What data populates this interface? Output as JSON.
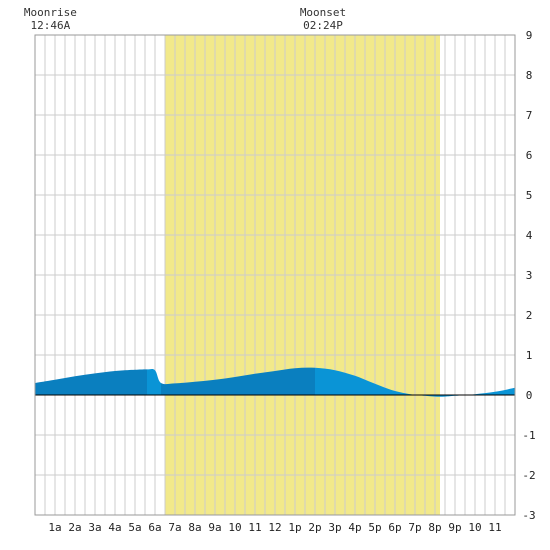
{
  "chart_data": {
    "type": "area",
    "title": "",
    "xlabel": "",
    "ylabel": "",
    "ylim": [
      -3,
      9
    ],
    "xlim": [
      0,
      24
    ],
    "grid": true,
    "yticks": [
      -3,
      -2,
      -1,
      0,
      1,
      2,
      3,
      4,
      5,
      6,
      7,
      8,
      9
    ],
    "xticks": [
      {
        "x": 1,
        "label": "1a"
      },
      {
        "x": 2,
        "label": "2a"
      },
      {
        "x": 3,
        "label": "3a"
      },
      {
        "x": 4,
        "label": "4a"
      },
      {
        "x": 5,
        "label": "5a"
      },
      {
        "x": 6,
        "label": "6a"
      },
      {
        "x": 7,
        "label": "7a"
      },
      {
        "x": 8,
        "label": "8a"
      },
      {
        "x": 9,
        "label": "9a"
      },
      {
        "x": 10,
        "label": "10"
      },
      {
        "x": 11,
        "label": "11"
      },
      {
        "x": 12,
        "label": "12"
      },
      {
        "x": 13,
        "label": "1p"
      },
      {
        "x": 14,
        "label": "2p"
      },
      {
        "x": 15,
        "label": "3p"
      },
      {
        "x": 16,
        "label": "4p"
      },
      {
        "x": 17,
        "label": "5p"
      },
      {
        "x": 18,
        "label": "6p"
      },
      {
        "x": 19,
        "label": "7p"
      },
      {
        "x": 20,
        "label": "8p"
      },
      {
        "x": 21,
        "label": "9p"
      },
      {
        "x": 22,
        "label": "10"
      },
      {
        "x": 23,
        "label": "11"
      }
    ],
    "daylight": {
      "start": 6.5,
      "end": 20.25
    },
    "annotations": [
      {
        "label": "Moonrise",
        "time": "12:46A",
        "x": 0.77
      },
      {
        "label": "Moonset",
        "time": "02:24P",
        "x": 14.4
      }
    ],
    "tide": {
      "x": [
        0,
        1,
        2,
        3,
        4,
        5,
        5.6,
        6,
        6.3,
        7,
        8,
        9,
        10,
        11,
        12,
        13,
        14,
        15,
        16,
        17,
        18,
        19,
        19.5,
        20,
        20.5,
        21,
        22,
        23,
        24
      ],
      "y": [
        0.3,
        0.38,
        0.47,
        0.54,
        0.6,
        0.63,
        0.64,
        0.62,
        0.3,
        0.29,
        0.33,
        0.38,
        0.45,
        0.53,
        0.6,
        0.67,
        0.68,
        0.62,
        0.48,
        0.28,
        0.1,
        0.0,
        -0.02,
        -0.04,
        -0.04,
        -0.02,
        0.02,
        0.08,
        0.18
      ]
    },
    "colors": {
      "daylight": "#f2e98a",
      "tide_dark": "#0a7fbf",
      "tide_light": "#0a94d6",
      "grid": "#cccccc",
      "zero_line": "#000000"
    }
  }
}
